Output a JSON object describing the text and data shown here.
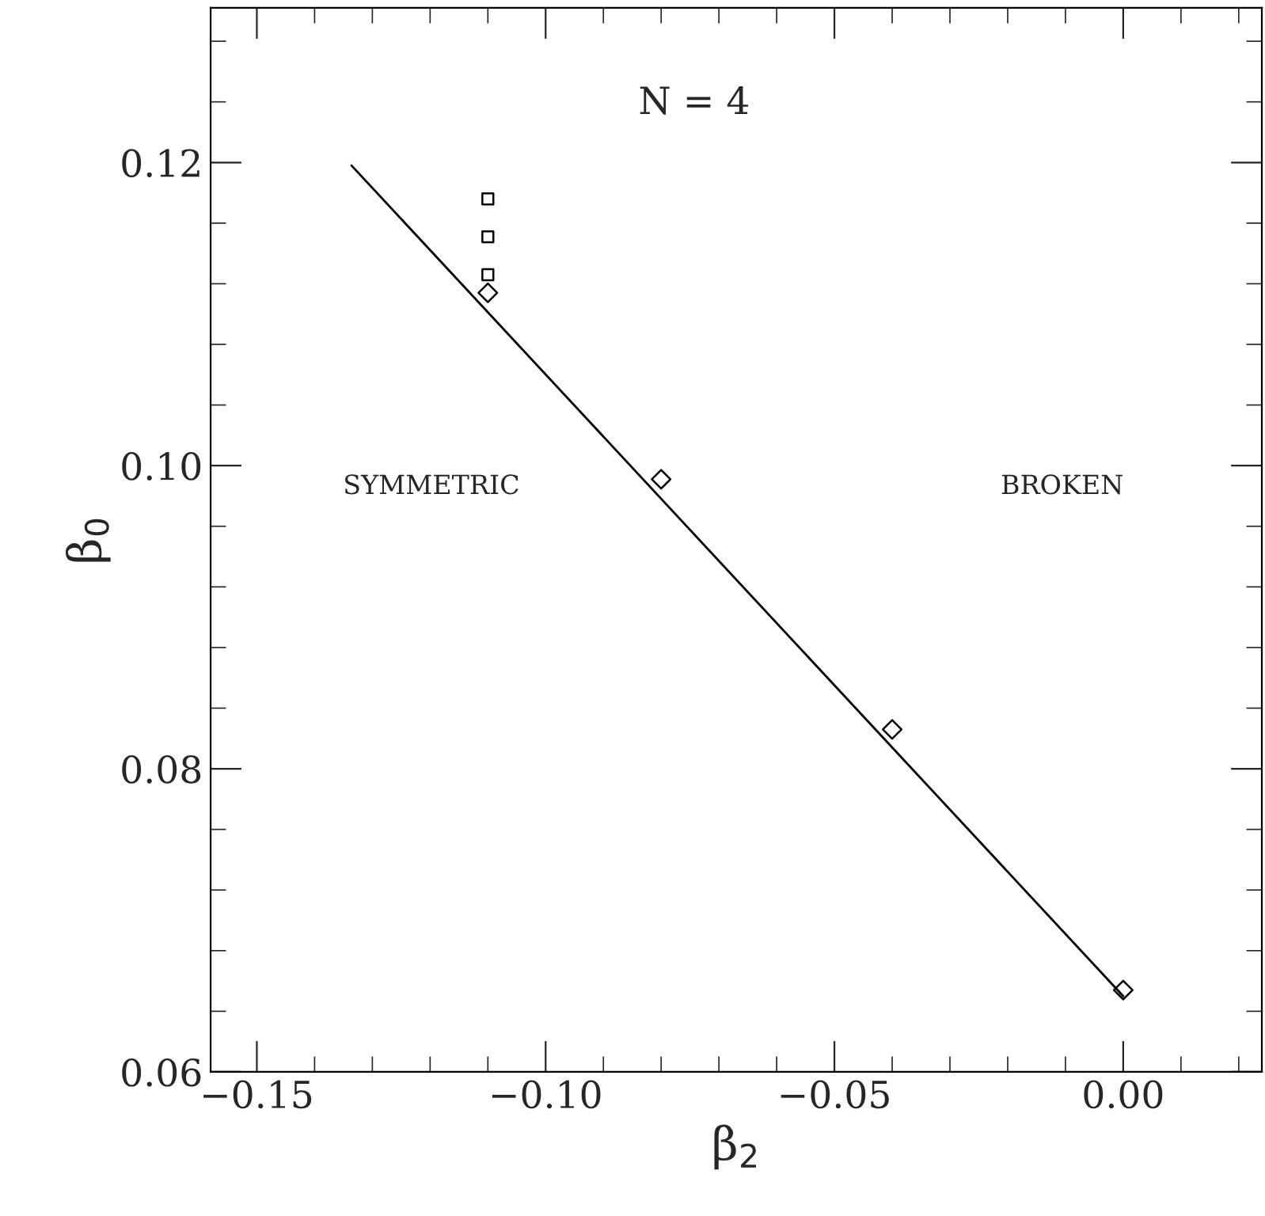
{
  "chart_data": {
    "type": "scatter",
    "xlabel": "β$_{2}$",
    "ylabel": "β$_{0}$",
    "xlim": [
      -0.158,
      0.024
    ],
    "ylim": [
      0.06,
      0.1302
    ],
    "xticks": [
      {
        "value": -0.15,
        "label": "−0.15"
      },
      {
        "value": -0.1,
        "label": "−0.10"
      },
      {
        "value": -0.05,
        "label": "−0.05"
      },
      {
        "value": 0.0,
        "label": "0.00"
      }
    ],
    "yticks": [
      {
        "value": 0.06,
        "label": "0.06"
      },
      {
        "value": 0.08,
        "label": "0.08"
      },
      {
        "value": 0.1,
        "label": "0.10"
      },
      {
        "value": 0.12,
        "label": "0.12"
      }
    ],
    "grid": false,
    "legend": false,
    "series": [
      {
        "type": "line",
        "color": "#000000",
        "x": [
          -0.1336,
          0.0
        ],
        "values": [
          0.1198,
          0.065
        ],
        "marker": "none",
        "line_style": "solid"
      },
      {
        "color": "#000000",
        "x": [
          -0.11,
          -0.08,
          -0.04,
          0.0
        ],
        "values": [
          0.1114,
          0.0991,
          0.0826,
          0.0654
        ],
        "marker": "diamond"
      },
      {
        "color": "#000000",
        "x": [
          -0.11,
          -0.11,
          -0.11
        ],
        "values": [
          0.1176,
          0.1151,
          0.1126
        ],
        "marker": "square"
      }
    ],
    "annotations": [
      "N = 4",
      "SYMMETRIC",
      "BROKEN"
    ]
  }
}
